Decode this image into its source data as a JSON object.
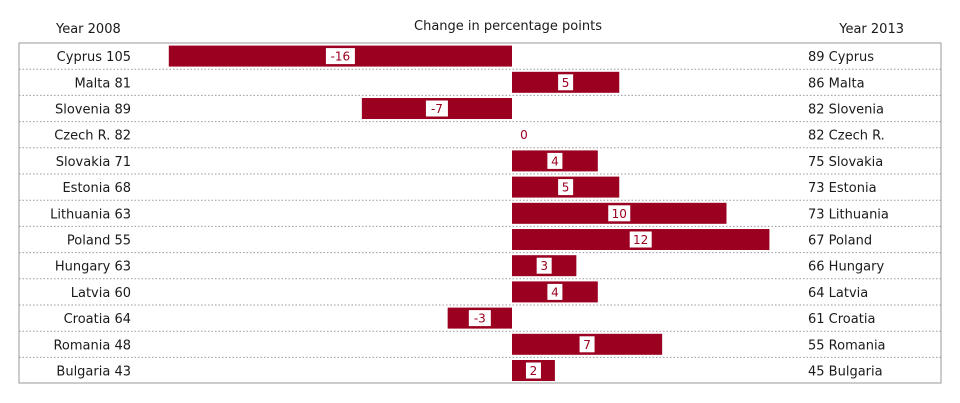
{
  "chart_data": {
    "type": "bar",
    "orientation": "horizontal",
    "title": "Change in percentage points",
    "left_header": "Year 2008",
    "right_header": "Year 2013",
    "bar_color": "#9b0020",
    "label_box_color": "#ffffff",
    "label_text_color": "#9b0020",
    "xlim": [
      -16,
      12
    ],
    "grid": true,
    "rows": [
      {
        "country": "Cyprus",
        "y2008": "105",
        "y2013": "89",
        "change": -16
      },
      {
        "country": "Malta",
        "y2008": "81",
        "y2013": "86",
        "change": 5
      },
      {
        "country": "Slovenia",
        "y2008": "89",
        "y2013": "82",
        "change": -7
      },
      {
        "country": "Czech R.",
        "y2008": "82",
        "y2013": "82",
        "change": 0
      },
      {
        "country": "Slovakia",
        "y2008": "71",
        "y2013": "75",
        "change": 4
      },
      {
        "country": "Estonia",
        "y2008": "68",
        "y2013": "73",
        "change": 5
      },
      {
        "country": "Lithuania",
        "y2008": "63",
        "y2013": "73",
        "change": 10
      },
      {
        "country": "Poland",
        "y2008": "55",
        "y2013": "67",
        "change": 12
      },
      {
        "country": "Hungary",
        "y2008": "63",
        "y2013": "66",
        "change": 3
      },
      {
        "country": "Latvia",
        "y2008": "60",
        "y2013": "64",
        "change": 4
      },
      {
        "country": "Croatia",
        "y2008": "64",
        "y2013": "61",
        "change": -3
      },
      {
        "country": "Romania",
        "y2008": "48",
        "y2013": "55",
        "change": 7
      },
      {
        "country": "Bulgaria",
        "y2008": "43",
        "y2013": "45",
        "change": 2
      }
    ]
  }
}
